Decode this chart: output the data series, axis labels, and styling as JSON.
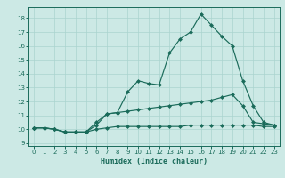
{
  "xlabel": "Humidex (Indice chaleur)",
  "xlim": [
    -0.5,
    23.5
  ],
  "ylim": [
    8.8,
    18.8
  ],
  "yticks": [
    9,
    10,
    11,
    12,
    13,
    14,
    15,
    16,
    17,
    18
  ],
  "xticks": [
    0,
    1,
    2,
    3,
    4,
    5,
    6,
    7,
    8,
    9,
    10,
    11,
    12,
    13,
    14,
    15,
    16,
    17,
    18,
    19,
    20,
    21,
    22,
    23
  ],
  "bg_color": "#cce9e5",
  "grid_color": "#aad4cf",
  "line_color": "#1a6b5a",
  "curves": [
    {
      "x": [
        0,
        1,
        2,
        3,
        4,
        5,
        6,
        7,
        8,
        9,
        10,
        11,
        12,
        13,
        14,
        15,
        16,
        17,
        18,
        19,
        20,
        21,
        22,
        23
      ],
      "y": [
        10.1,
        10.1,
        10.0,
        9.8,
        9.8,
        9.8,
        10.5,
        11.1,
        11.2,
        12.7,
        13.5,
        13.3,
        13.2,
        15.5,
        16.5,
        17.0,
        18.3,
        17.5,
        16.7,
        16.0,
        13.5,
        11.7,
        10.5,
        10.3
      ]
    },
    {
      "x": [
        0,
        1,
        2,
        3,
        4,
        5,
        6,
        7,
        8,
        9,
        10,
        11,
        12,
        13,
        14,
        15,
        16,
        17,
        18,
        19,
        20,
        21,
        22,
        23
      ],
      "y": [
        10.1,
        10.1,
        10.0,
        9.8,
        9.8,
        9.8,
        10.3,
        11.1,
        11.2,
        11.3,
        11.4,
        11.5,
        11.6,
        11.7,
        11.8,
        11.9,
        12.0,
        12.1,
        12.3,
        12.5,
        11.7,
        10.5,
        10.4,
        10.3
      ]
    },
    {
      "x": [
        0,
        1,
        2,
        3,
        4,
        5,
        6,
        7,
        8,
        9,
        10,
        11,
        12,
        13,
        14,
        15,
        16,
        17,
        18,
        19,
        20,
        21,
        22,
        23
      ],
      "y": [
        10.1,
        10.1,
        10.0,
        9.8,
        9.8,
        9.8,
        10.0,
        10.1,
        10.2,
        10.2,
        10.2,
        10.2,
        10.2,
        10.2,
        10.2,
        10.3,
        10.3,
        10.3,
        10.3,
        10.3,
        10.3,
        10.3,
        10.2,
        10.2
      ]
    }
  ],
  "markersize": 2.5,
  "linewidth": 0.85
}
